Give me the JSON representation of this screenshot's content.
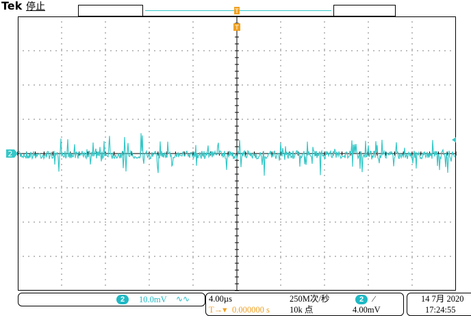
{
  "header": {
    "brand": "Tek",
    "status": "停止"
  },
  "markers": {
    "trigger_position": "T",
    "channel": "2"
  },
  "channel_readout": {
    "badge": "2",
    "scale": "10.0mV",
    "coupling_icon": "bandwidth-limit-icon"
  },
  "timebase": {
    "horizontal_scale": "4.00µs",
    "delay": "0.000000 s",
    "sample_rate": "250M次/秒",
    "record_length": "10k 点"
  },
  "trigger": {
    "source_badge": "2",
    "slope_icon": "rising-edge-icon",
    "slope_glyph": "∕",
    "level": "4.00mV"
  },
  "clock": {
    "date": "14 7月 2020",
    "time": "17:24:55"
  },
  "colors": {
    "ch2": "#35c7c7",
    "trigger": "#f0a020",
    "grid": "#000000"
  }
}
